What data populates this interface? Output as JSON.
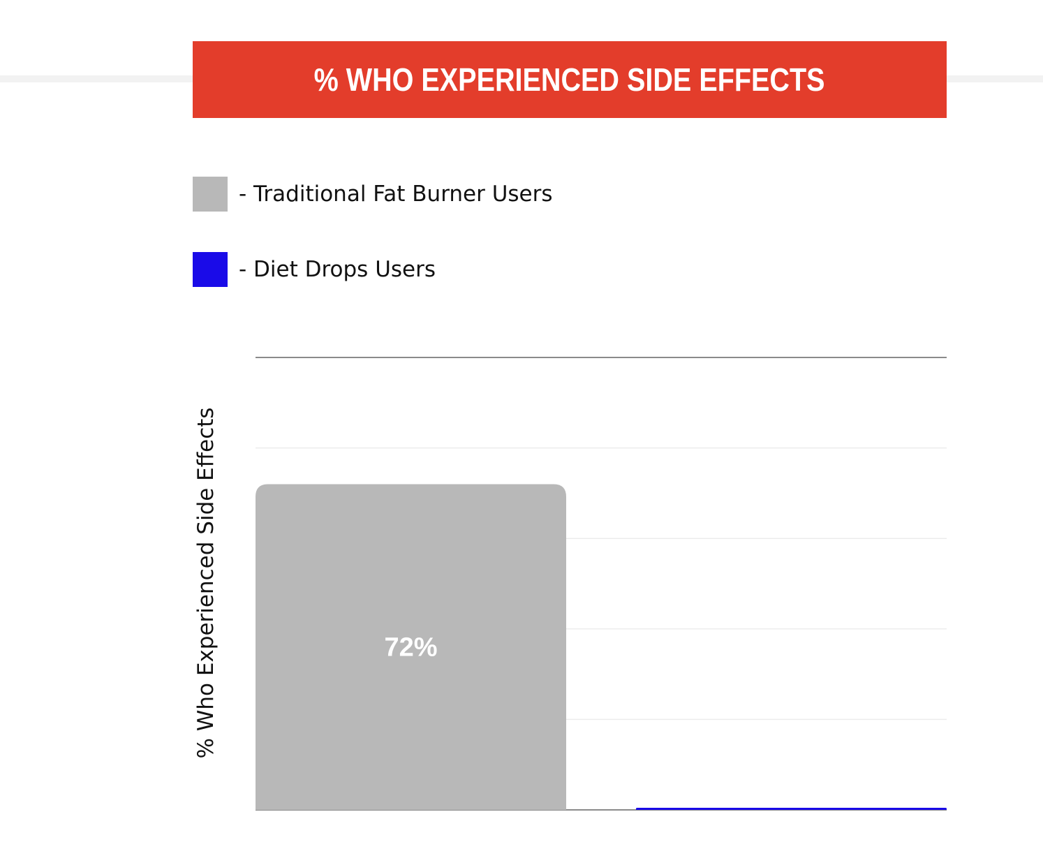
{
  "title": "% WHO EXPERIENCED SIDE EFFECTS",
  "colors": {
    "header_bg": "#e33d2b",
    "series_traditional": "#b8b8b8",
    "series_diet_drops": "#1a0be8"
  },
  "legend": [
    {
      "label": "- Traditional Fat Burner Users",
      "color": "#b8b8b8"
    },
    {
      "label": "- Diet Drops Users",
      "color": "#1a0be8"
    }
  ],
  "chart_data": {
    "type": "bar",
    "title": "% WHO EXPERIENCED SIDE EFFECTS",
    "xlabel": "",
    "ylabel": "% Who Experienced Side Effects",
    "ylim": [
      0,
      100
    ],
    "grid": true,
    "legend_position": "top-left",
    "series": [
      {
        "name": "Traditional Fat Burner Users",
        "values": [
          72
        ],
        "data_label": "72%",
        "color": "#b8b8b8"
      },
      {
        "name": "Diet Drops Users",
        "values": [
          0.3
        ],
        "data_label": "",
        "color": "#1a0be8"
      }
    ]
  }
}
